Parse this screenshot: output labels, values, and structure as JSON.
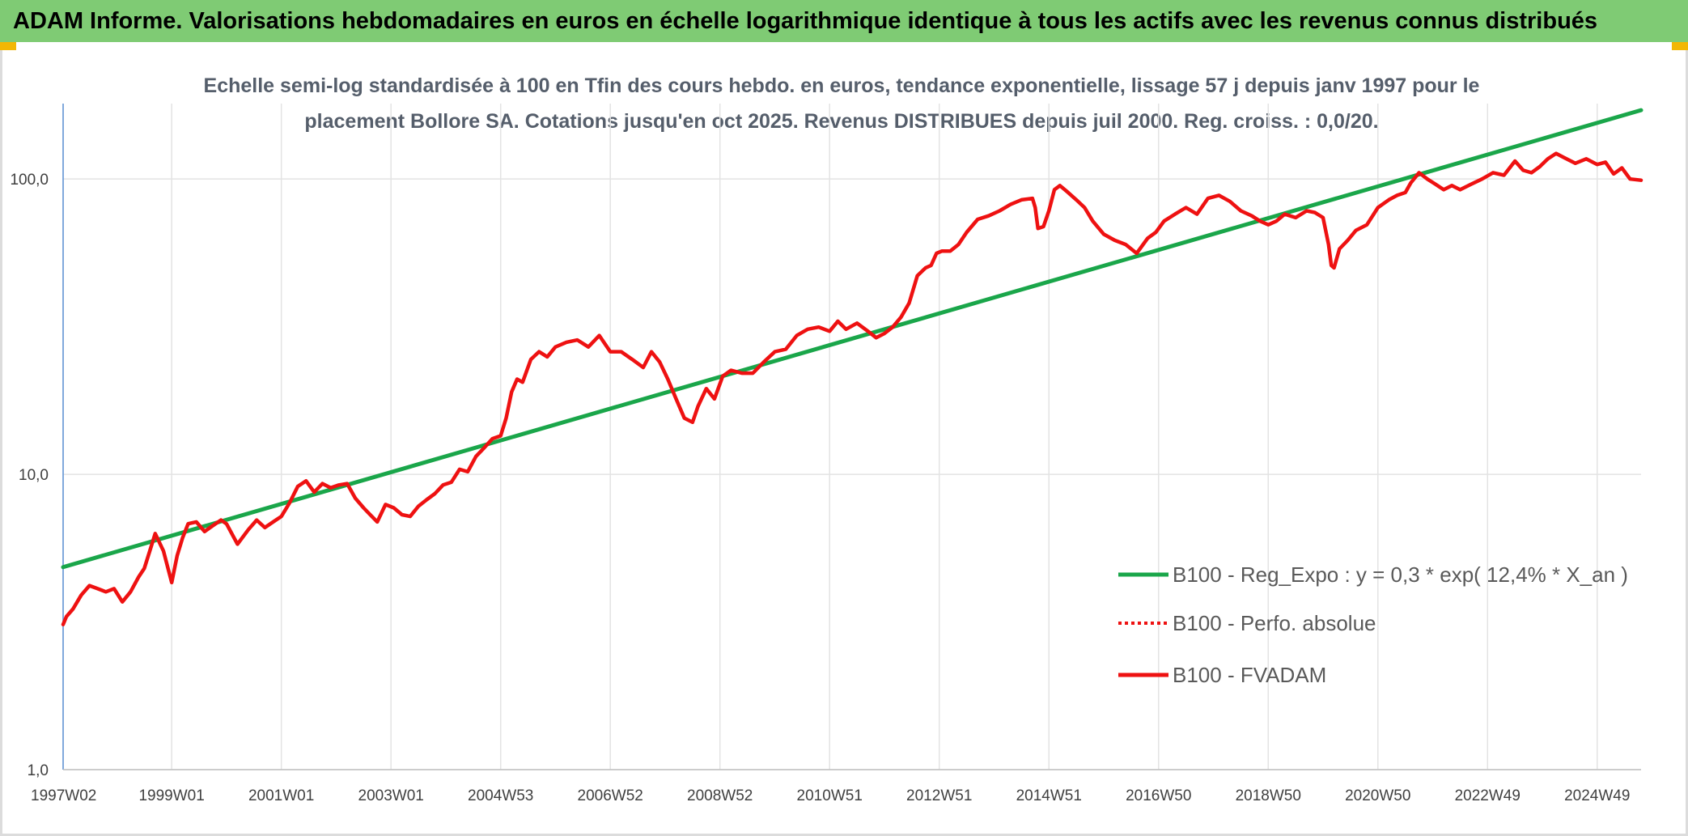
{
  "banner": {
    "title": "ADAM Informe. Valorisations hebdomadaires en euros en échelle logarithmique identique à tous les actifs avec les revenus connus distribués"
  },
  "colors": {
    "banner_bg": "#7fcb74",
    "regression": "#1aa64a",
    "fvadam": "#ee1111",
    "perfo": "#ee1111",
    "grid": "#e3e3e3",
    "corner_accent": "#f2b705"
  },
  "chart_data": {
    "type": "line",
    "title_lines": [
      "Echelle semi-log standardisée à 100 en Tfin des cours hebdo. en euros, tendance exponentielle, lissage 57 j depuis janv 1997 pour le",
      "placement Bollore SA. Cotations jusqu'en oct 2025. Revenus DISTRIBUES depuis juil 2000. Reg. croiss. : 0,0/20."
    ],
    "y_scale": "log",
    "ylim": [
      1,
      180
    ],
    "y_ticks": [
      {
        "value": 1,
        "label": "1,0"
      },
      {
        "value": 10,
        "label": "10,0"
      },
      {
        "value": 100,
        "label": "100,0"
      }
    ],
    "xlim": [
      1997.02,
      2025.8
    ],
    "x_ticks": [
      {
        "value": 1997.02,
        "label": "1997W02"
      },
      {
        "value": 1999.0,
        "label": "1999W01"
      },
      {
        "value": 2001.0,
        "label": "2001W01"
      },
      {
        "value": 2003.0,
        "label": "2003W01"
      },
      {
        "value": 2005.0,
        "label": "2004W53"
      },
      {
        "value": 2007.0,
        "label": "2006W52"
      },
      {
        "value": 2009.0,
        "label": "2008W52"
      },
      {
        "value": 2011.0,
        "label": "2010W51"
      },
      {
        "value": 2013.0,
        "label": "2012W51"
      },
      {
        "value": 2015.0,
        "label": "2014W51"
      },
      {
        "value": 2017.0,
        "label": "2016W50"
      },
      {
        "value": 2019.0,
        "label": "2018W50"
      },
      {
        "value": 2021.0,
        "label": "2020W50"
      },
      {
        "value": 2023.0,
        "label": "2022W49"
      },
      {
        "value": 2025.0,
        "label": "2024W49"
      }
    ],
    "legend_position": "right",
    "grid": "horizontal and vertical",
    "series": [
      {
        "name": "B100 - Reg_Expo : y = 0,3 * exp( 12,4% *  X_an )",
        "style": "solid",
        "x": [
          1997.02,
          2025.8
        ],
        "y": [
          4.85,
          171
        ]
      },
      {
        "name": "B100 - Perfo. absolue",
        "style": "dotted",
        "x": [],
        "y": []
      },
      {
        "name": "B100 - FVADAM",
        "style": "solid",
        "x": [
          1997.02,
          1997.08,
          1997.2,
          1997.35,
          1997.5,
          1997.65,
          1997.8,
          1997.95,
          1998.1,
          1998.25,
          1998.4,
          1998.5,
          1998.6,
          1998.7,
          1998.85,
          1999.0,
          1999.1,
          1999.2,
          1999.3,
          1999.45,
          1999.6,
          1999.75,
          1999.9,
          2000.0,
          2000.2,
          2000.4,
          2000.55,
          2000.7,
          2000.9,
          2001.0,
          2001.15,
          2001.3,
          2001.45,
          2001.6,
          2001.75,
          2001.9,
          2002.05,
          2002.2,
          2002.35,
          2002.5,
          2002.65,
          2002.75,
          2002.9,
          2003.05,
          2003.2,
          2003.35,
          2003.5,
          2003.65,
          2003.8,
          2003.95,
          2004.1,
          2004.25,
          2004.4,
          2004.55,
          2004.7,
          2004.85,
          2005.0,
          2005.1,
          2005.2,
          2005.3,
          2005.4,
          2005.55,
          2005.7,
          2005.85,
          2006.0,
          2006.2,
          2006.4,
          2006.6,
          2006.8,
          2007.0,
          2007.2,
          2007.4,
          2007.6,
          2007.75,
          2007.9,
          2008.05,
          2008.2,
          2008.35,
          2008.5,
          2008.6,
          2008.75,
          2008.9,
          2009.05,
          2009.2,
          2009.4,
          2009.6,
          2009.8,
          2010.0,
          2010.2,
          2010.4,
          2010.6,
          2010.8,
          2011.0,
          2011.15,
          2011.3,
          2011.5,
          2011.7,
          2011.85,
          2012.0,
          2012.15,
          2012.3,
          2012.45,
          2012.6,
          2012.75,
          2012.85,
          2012.95,
          2013.05,
          2013.2,
          2013.35,
          2013.5,
          2013.7,
          2013.9,
          2014.1,
          2014.3,
          2014.5,
          2014.7,
          2014.75,
          2014.8,
          2014.9,
          2015.0,
          2015.1,
          2015.2,
          2015.35,
          2015.5,
          2015.65,
          2015.8,
          2016.0,
          2016.2,
          2016.4,
          2016.6,
          2016.8,
          2016.95,
          2017.1,
          2017.3,
          2017.5,
          2017.7,
          2017.9,
          2018.1,
          2018.3,
          2018.5,
          2018.7,
          2018.85,
          2019.0,
          2019.15,
          2019.3,
          2019.5,
          2019.7,
          2019.85,
          2020.0,
          2020.1,
          2020.15,
          2020.2,
          2020.3,
          2020.45,
          2020.6,
          2020.8,
          2021.0,
          2021.2,
          2021.35,
          2021.5,
          2021.6,
          2021.75,
          2021.9,
          2022.05,
          2022.2,
          2022.35,
          2022.5,
          2022.7,
          2022.9,
          2023.1,
          2023.3,
          2023.5,
          2023.65,
          2023.8,
          2023.95,
          2024.1,
          2024.25,
          2024.4,
          2024.6,
          2024.8,
          2025.0,
          2025.15,
          2025.3,
          2025.45,
          2025.6,
          2025.8
        ],
        "y": [
          3.1,
          3.3,
          3.5,
          3.9,
          4.2,
          4.1,
          4.0,
          4.1,
          3.7,
          4.0,
          4.5,
          4.8,
          5.5,
          6.3,
          5.5,
          4.3,
          5.3,
          6.1,
          6.8,
          6.9,
          6.4,
          6.7,
          7.0,
          6.8,
          5.8,
          6.5,
          7.0,
          6.6,
          7.0,
          7.2,
          8.0,
          9.1,
          9.5,
          8.7,
          9.3,
          9.0,
          9.2,
          9.3,
          8.3,
          7.7,
          7.2,
          6.9,
          7.9,
          7.7,
          7.3,
          7.2,
          7.8,
          8.2,
          8.6,
          9.2,
          9.4,
          10.4,
          10.2,
          11.5,
          12.3,
          13.2,
          13.5,
          15.5,
          19.0,
          21.0,
          20.5,
          24.5,
          26.0,
          25.0,
          27.0,
          28.0,
          28.5,
          27.0,
          29.5,
          26.0,
          26.0,
          24.5,
          23.0,
          26.0,
          24.0,
          21.0,
          18.0,
          15.5,
          15.0,
          17.0,
          19.5,
          18.0,
          21.5,
          22.5,
          22.0,
          22.0,
          24.0,
          26.0,
          26.5,
          29.5,
          31.0,
          31.5,
          30.5,
          33.0,
          31.0,
          32.5,
          30.5,
          29.0,
          30.0,
          31.5,
          34.0,
          38.0,
          47.0,
          50.0,
          51.0,
          56.0,
          57.0,
          57.0,
          60.0,
          66.0,
          73.0,
          75.0,
          78.0,
          82.0,
          85.0,
          86.0,
          80.0,
          68.0,
          69.0,
          78.0,
          92.0,
          95.0,
          90.0,
          85.0,
          80.0,
          72.0,
          65.0,
          62.0,
          60.0,
          56.0,
          63.0,
          66.0,
          72.0,
          76.0,
          80.0,
          76.0,
          86.0,
          88.0,
          84.0,
          78.0,
          75.0,
          72.0,
          70.0,
          72.0,
          76.0,
          74.0,
          78.0,
          77.0,
          74.0,
          60.0,
          51.0,
          50.0,
          58.0,
          62.0,
          67.0,
          70.0,
          80.0,
          85.0,
          88.0,
          90.0,
          97.0,
          105.0,
          100.0,
          96.0,
          92.0,
          95.0,
          92.0,
          96.0,
          100.0,
          105.0,
          103.0,
          115.0,
          107.0,
          105.0,
          110.0,
          117.0,
          122.0,
          118.0,
          113.0,
          117.0,
          112.0,
          114.0,
          104.0,
          109.0,
          100.0,
          99.0
        ]
      }
    ]
  }
}
